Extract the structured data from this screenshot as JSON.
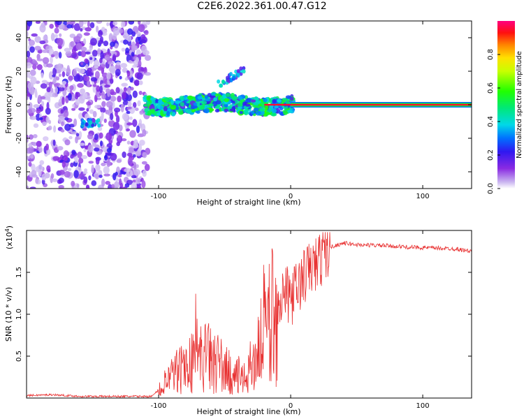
{
  "title": "C2E6.2022.361.00.47.G12",
  "chart_data": [
    {
      "type": "heatmap",
      "xlabel": "Height of straight line (km)",
      "ylabel": "Frequency (Hz)",
      "xlim": [
        -200,
        137
      ],
      "ylim": [
        -50,
        50
      ],
      "xticks": [
        -100,
        0,
        100
      ],
      "yticks": [
        -40,
        -20,
        0,
        20,
        40
      ],
      "colorbar": {
        "label": "Normalized spectral amplitude",
        "range": [
          0,
          1
        ],
        "ticks": [
          "0.0",
          "0.2",
          "0.4",
          "0.6",
          "0.8"
        ]
      },
      "features": [
        {
          "name": "scattered noise",
          "x": [
            -190,
            -108
          ],
          "freq": [
            -50,
            50
          ],
          "amplitude": 0.15
        },
        {
          "name": "dense signal",
          "x": [
            -110,
            0
          ],
          "freq": [
            -5,
            5
          ],
          "amplitude": 0.45
        },
        {
          "name": "narrow carrier line",
          "x": [
            0,
            137
          ],
          "freq": [
            0,
            0
          ],
          "amplitude": 0.95
        },
        {
          "name": "upper blobs",
          "x": [
            -55,
            -35
          ],
          "freq": [
            12,
            21
          ],
          "amplitude": 0.3
        },
        {
          "name": "lower blob",
          "x": [
            -158,
            -145
          ],
          "freq": [
            -13,
            -9
          ],
          "amplitude": 0.3
        }
      ]
    },
    {
      "type": "line",
      "xlabel": "Height of straight line (km)",
      "ylabel": "SNR (10 * v/v)",
      "yscale_label": "(x10",
      "yscale_exp": "4",
      "xlim": [
        -200,
        137
      ],
      "ylim": [
        0,
        2.0
      ],
      "xticks": [
        -100,
        0,
        100
      ],
      "yticks": [
        "0.5",
        "1.0",
        "1.5"
      ],
      "series": [
        {
          "color": "#e83030",
          "x": [
            -200,
            -180,
            -160,
            -140,
            -120,
            -105,
            -95,
            -85,
            -75,
            -65,
            -55,
            -45,
            -35,
            -25,
            -20,
            -15,
            -10,
            -5,
            0,
            5,
            10,
            15,
            20,
            25,
            30,
            40,
            50,
            70,
            90,
            110,
            125,
            137
          ],
          "y": [
            0.03,
            0.04,
            0.02,
            0.02,
            0.02,
            0.02,
            0.18,
            0.32,
            0.42,
            0.5,
            0.42,
            0.28,
            0.22,
            0.55,
            0.88,
            0.95,
            1.15,
            1.25,
            1.2,
            1.3,
            1.45,
            1.55,
            1.6,
            1.72,
            1.8,
            1.85,
            1.83,
            1.82,
            1.8,
            1.79,
            1.78,
            1.75
          ]
        }
      ]
    }
  ]
}
